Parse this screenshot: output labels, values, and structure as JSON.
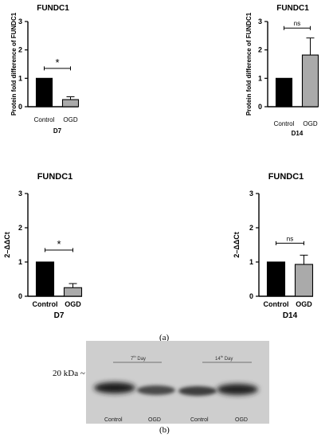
{
  "chart_data": [
    {
      "type": "bar",
      "title": "FUNDC1",
      "ylabel": "Protein fold difference of FUNDC1",
      "xlabel": "D7",
      "categories": [
        "Control",
        "OGD"
      ],
      "values": [
        1.0,
        0.25
      ],
      "errors": [
        0,
        0.1
      ],
      "ylim": [
        0,
        3
      ],
      "yticks": [
        "0",
        "1",
        "2",
        "3"
      ],
      "significance": "*",
      "colors": [
        "#000000",
        "#aaaaaa"
      ]
    },
    {
      "type": "bar",
      "title": "FUNDC1",
      "ylabel": "Protein fold difference of FUNDC1",
      "xlabel": "D14",
      "categories": [
        "Control",
        "OGD"
      ],
      "values": [
        1.0,
        1.82
      ],
      "errors": [
        0,
        0.6
      ],
      "ylim": [
        0,
        3
      ],
      "yticks": [
        "0",
        "1",
        "2",
        "3"
      ],
      "significance": "ns",
      "colors": [
        "#000000",
        "#aaaaaa"
      ]
    },
    {
      "type": "bar",
      "title": "FUNDC1",
      "ylabel": "2–ΔΔCt",
      "xlabel": "D7",
      "categories": [
        "Control",
        "OGD"
      ],
      "values": [
        1.0,
        0.25
      ],
      "errors": [
        0,
        0.12
      ],
      "ylim": [
        0,
        3
      ],
      "yticks": [
        "0",
        "1",
        "2",
        "3"
      ],
      "significance": "*",
      "colors": [
        "#000000",
        "#aaaaaa"
      ]
    },
    {
      "type": "bar",
      "title": "FUNDC1",
      "ylabel": "2–ΔΔCt",
      "xlabel": "D14",
      "categories": [
        "Control",
        "OGD"
      ],
      "values": [
        1.0,
        0.93
      ],
      "errors": [
        0,
        0.27
      ],
      "ylim": [
        0,
        3
      ],
      "yticks": [
        "0",
        "1",
        "2",
        "3"
      ],
      "significance": "ns",
      "colors": [
        "#000000",
        "#aaaaaa"
      ]
    }
  ],
  "figure": {
    "label_a": "(a)",
    "label_b": "(b)"
  },
  "blot": {
    "marker": "20 kDa ~",
    "day7": "7",
    "day7_suffix": "th",
    "day7_word": "Day",
    "day14": "14",
    "day14_suffix": "th",
    "day14_word": "Day",
    "lanes": [
      "Control",
      "OGD",
      "Control",
      "OGD"
    ]
  }
}
